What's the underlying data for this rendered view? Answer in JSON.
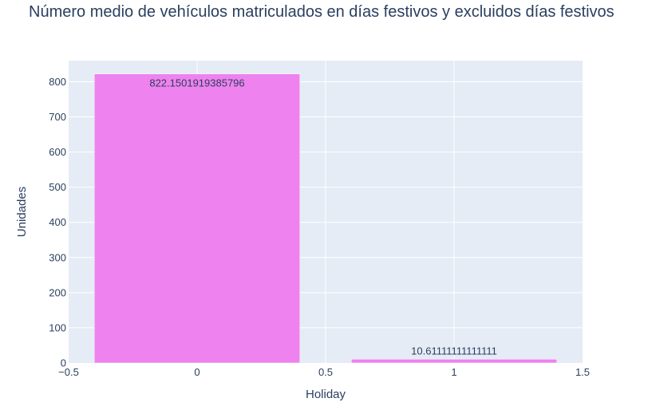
{
  "chart_data": {
    "type": "bar",
    "title": "Número medio de vehículos matriculados en días festivos y excluidos días festivos",
    "xlabel": "Holiday",
    "ylabel": "Unidades",
    "x": [
      0,
      1
    ],
    "values": [
      822.1501919385796,
      10.61111111111111
    ],
    "text_labels": [
      "822.1501919385796",
      "10.61111111111111"
    ],
    "bar_width": 0.8,
    "xlim": [
      -0.5,
      1.5
    ],
    "ylim": [
      0,
      860
    ],
    "x_ticks": [
      -0.5,
      0,
      0.5,
      1,
      1.5
    ],
    "x_tick_labels": [
      "−0.5",
      "0",
      "0.5",
      "1",
      "1.5"
    ],
    "y_ticks": [
      0,
      100,
      200,
      300,
      400,
      500,
      600,
      700,
      800
    ],
    "y_tick_labels": [
      "0",
      "100",
      "200",
      "300",
      "400",
      "500",
      "600",
      "700",
      "800"
    ],
    "bar_color": "#ee82ee",
    "plot_bg": "#e5ecf6",
    "grid": true
  }
}
